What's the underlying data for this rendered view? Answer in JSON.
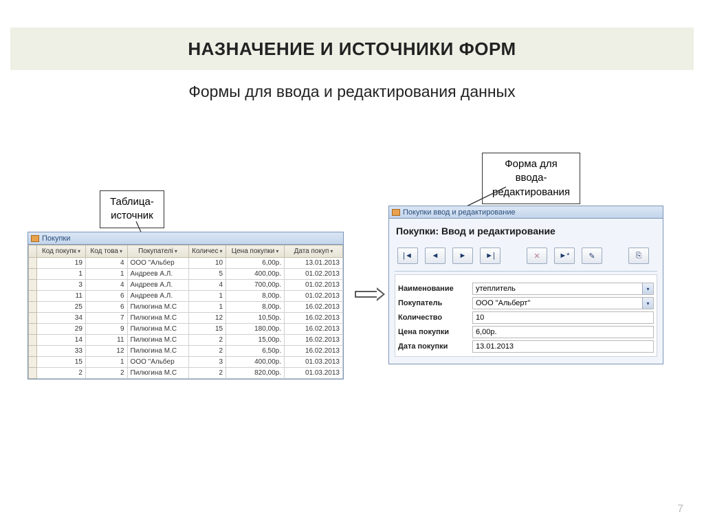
{
  "title": "НАЗНАЧЕНИЕ И ИСТОЧНИКИ ФОРМ",
  "subtitle": "Формы для ввода и редактирования данных",
  "page_number": "7",
  "callouts": {
    "left": "Таблица-\nисточник",
    "right": "Форма для\nввода-\nредактирования"
  },
  "table_window": {
    "title": "Покупки",
    "columns": [
      "Код покупк",
      "Код това",
      "Покупателі",
      "Количес",
      "Цена покупки",
      "Дата покуп"
    ],
    "rows": [
      [
        "19",
        "4",
        "ООО \"Альбер",
        "10",
        "6,00р.",
        "13.01.2013"
      ],
      [
        "1",
        "1",
        "Андреев А.Л.",
        "5",
        "400,00р.",
        "01.02.2013"
      ],
      [
        "3",
        "4",
        "Андреев А.Л.",
        "4",
        "700,00р.",
        "01.02.2013"
      ],
      [
        "11",
        "6",
        "Андреев А.Л.",
        "1",
        "8,00р.",
        "01.02.2013"
      ],
      [
        "25",
        "6",
        "Пилюгина М.С",
        "1",
        "8,00р.",
        "16.02.2013"
      ],
      [
        "34",
        "7",
        "Пилюгина М.С",
        "12",
        "10,50р.",
        "16.02.2013"
      ],
      [
        "29",
        "9",
        "Пилюгина М.С",
        "15",
        "180,00р.",
        "16.02.2013"
      ],
      [
        "14",
        "11",
        "Пилюгина М.С",
        "2",
        "15,00р.",
        "16.02.2013"
      ],
      [
        "33",
        "12",
        "Пилюгина М.С",
        "2",
        "6,50р.",
        "16.02.2013"
      ],
      [
        "15",
        "1",
        "ООО \"Альбер",
        "3",
        "400,00р.",
        "01.03.2013"
      ],
      [
        "2",
        "2",
        "Пилюгина М.С",
        "2",
        "820,00р.",
        "01.03.2013"
      ]
    ]
  },
  "form_window": {
    "outer_title": "Покупки ввод и редактирование",
    "heading": "Покупки: Ввод и редактирование",
    "nav": {
      "first": "|◄",
      "prev": "◄",
      "next": "►",
      "last": "►|",
      "del": "✕",
      "new": "►*",
      "save": "✎",
      "close": "⎘"
    },
    "fields": [
      {
        "label": "Наименование",
        "value": "утеплитель",
        "dropdown": true
      },
      {
        "label": "Покупатель",
        "value": "ООО \"Альберт\"",
        "dropdown": true
      },
      {
        "label": "Количество",
        "value": "10",
        "dropdown": false
      },
      {
        "label": "Цена покупки",
        "value": "6,00р.",
        "dropdown": false
      },
      {
        "label": "Дата покупки",
        "value": "13.01.2013",
        "dropdown": false
      }
    ]
  },
  "colors": {
    "title_bg": "#eef0e5",
    "window_border": "#7a93b7",
    "header_grad_a": "#dbe6f4",
    "header_grad_b": "#c4d6ec"
  }
}
